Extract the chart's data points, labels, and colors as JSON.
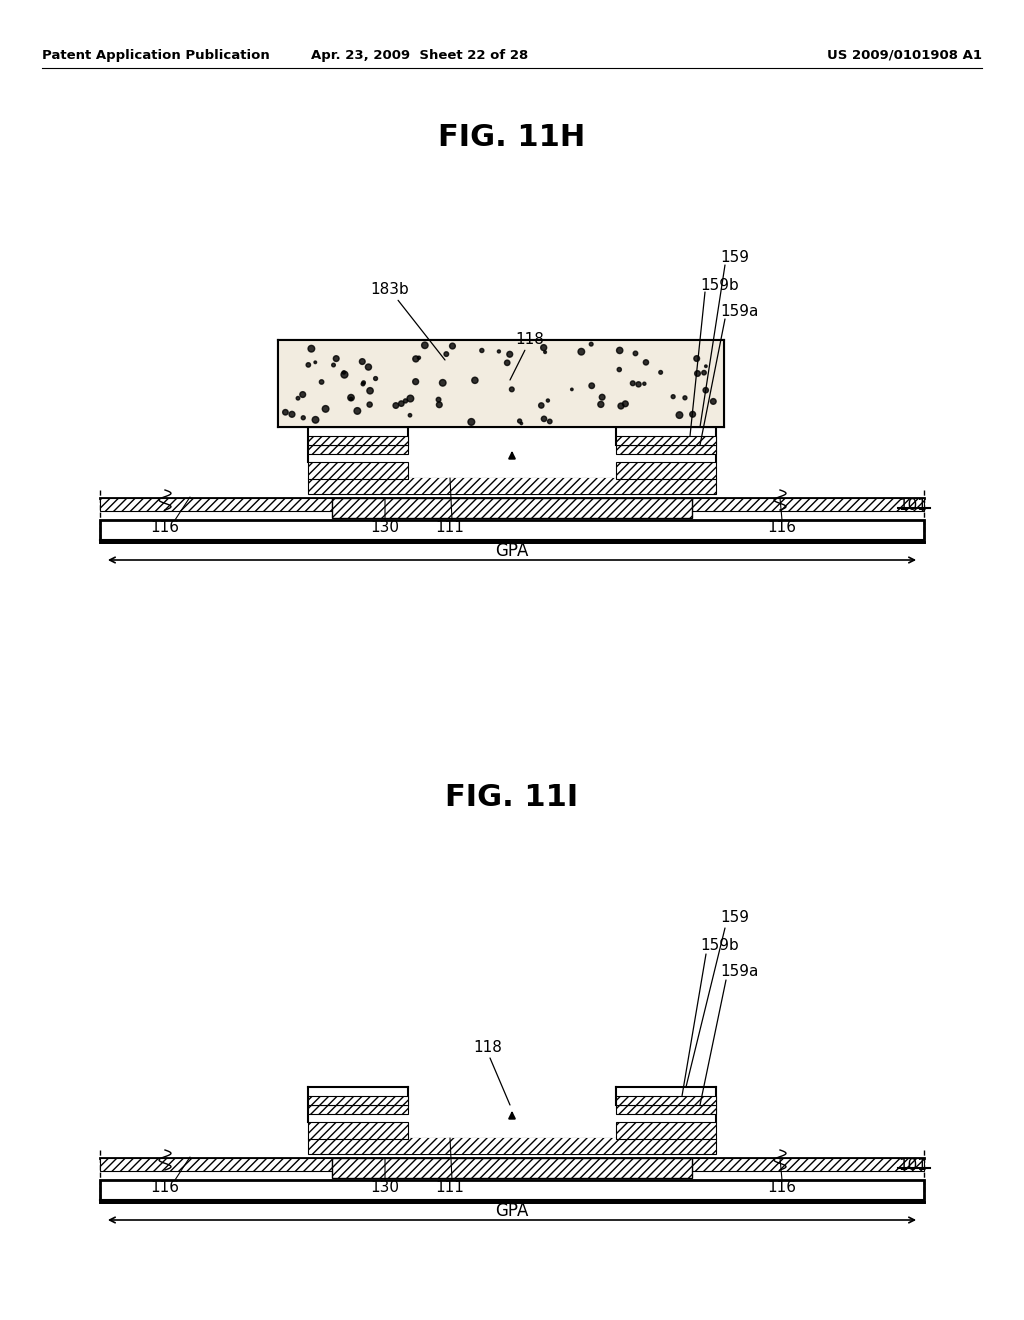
{
  "header_left": "Patent Application Publication",
  "header_mid": "Apr. 23, 2009  Sheet 22 of 28",
  "header_right": "US 2009/0101908 A1",
  "fig1_title": "FIG. 11H",
  "fig2_title": "FIG. 11I",
  "bg_color": "#ffffff"
}
